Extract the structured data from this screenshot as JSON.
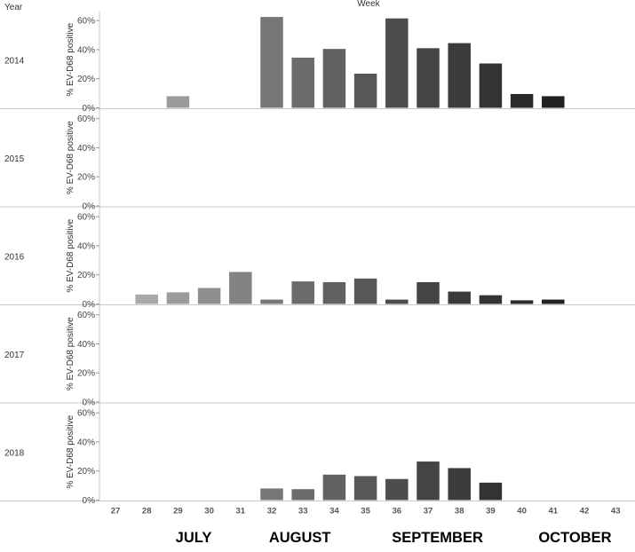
{
  "chart_data": {
    "type": "bar",
    "row_header": "Year",
    "column_header": "Week",
    "ylabel": "% EV-D68 positive",
    "ylim": [
      0,
      65
    ],
    "yticks": [
      0,
      20,
      40,
      60
    ],
    "ytick_labels": [
      "0%",
      "20%",
      "40%",
      "60%"
    ],
    "grid": false,
    "weeks": [
      "27",
      "28",
      "29",
      "30",
      "31",
      "32",
      "33",
      "34",
      "35",
      "36",
      "37",
      "38",
      "39",
      "40",
      "41",
      "42",
      "43"
    ],
    "months": [
      {
        "label": "JULY",
        "center_week": 29.5
      },
      {
        "label": "AUGUST",
        "center_week": 32.9
      },
      {
        "label": "SEPTEMBER",
        "center_week": 37.3
      },
      {
        "label": "OCTOBER",
        "center_week": 41.7
      }
    ],
    "colors": {
      "27": "#bdbdbd",
      "28": "#a8a8a8",
      "29": "#9b9b9b",
      "30": "#8f8f8f",
      "31": "#838383",
      "32": "#777777",
      "33": "#6b6b6b",
      "34": "#616161",
      "35": "#575757",
      "36": "#4d4d4d",
      "37": "#444444",
      "38": "#3b3b3b",
      "39": "#333333",
      "40": "#2a2a2a",
      "41": "#222222",
      "42": "#1b1b1b",
      "43": "#141414"
    },
    "panels": [
      {
        "year": "2014",
        "values": {
          "29": 8,
          "32": 62.5,
          "33": 34.5,
          "34": 40.5,
          "35": 23.5,
          "36": 61.5,
          "37": 41,
          "38": 44.5,
          "39": 30.5,
          "40": 9.5,
          "41": 8
        }
      },
      {
        "year": "2015",
        "values": {}
      },
      {
        "year": "2016",
        "values": {
          "28": 6.5,
          "29": 8,
          "30": 11,
          "31": 22,
          "32": 3,
          "33": 15.5,
          "34": 15,
          "35": 17.5,
          "36": 3,
          "37": 15,
          "38": 8.5,
          "39": 6,
          "40": 2.5,
          "41": 3
        }
      },
      {
        "year": "2017",
        "values": {}
      },
      {
        "year": "2018",
        "values": {
          "32": 8,
          "33": 7.5,
          "34": 17.5,
          "35": 16.5,
          "36": 14.5,
          "37": 26.5,
          "38": 22,
          "39": 12
        }
      }
    ]
  }
}
